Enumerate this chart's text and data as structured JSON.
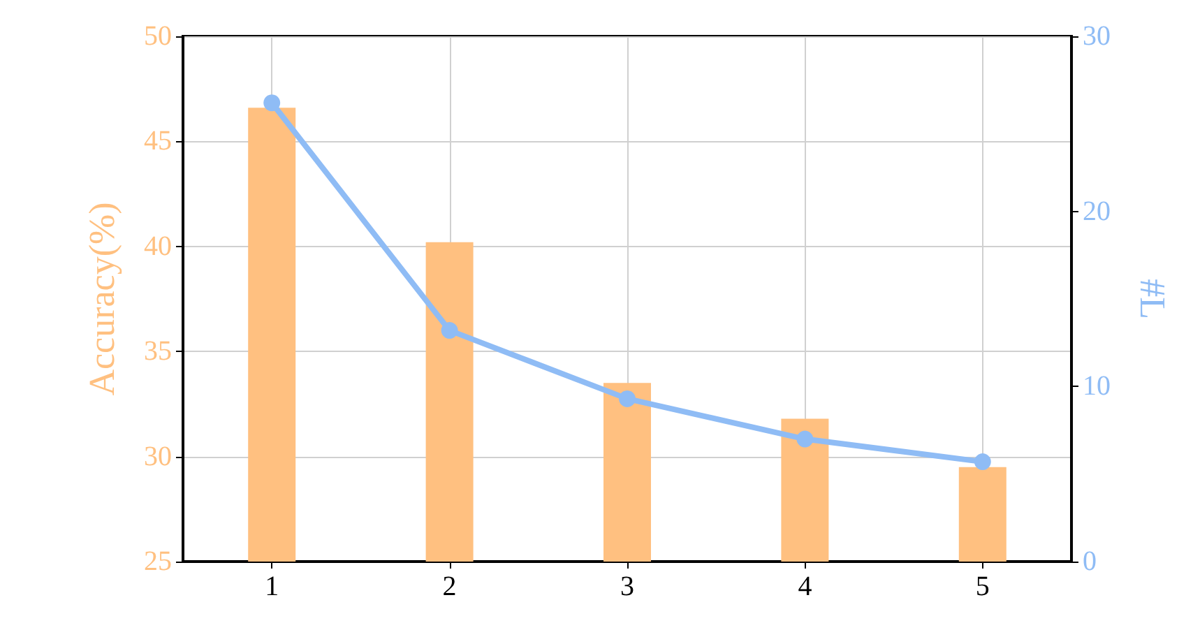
{
  "chart_data": {
    "type": "bar",
    "x": [
      1,
      2,
      3,
      4,
      5
    ],
    "xlim": [
      0.5,
      5.5
    ],
    "xticks": [
      1,
      2,
      3,
      4,
      5
    ],
    "ylabel": "Accuracy(%)",
    "y2label": "#L",
    "ylim": [
      25,
      50
    ],
    "yticks": [
      25,
      30,
      35,
      40,
      45,
      50
    ],
    "y2lim": [
      0,
      30
    ],
    "y2ticks": [
      0,
      10,
      20,
      30
    ],
    "grid": true,
    "series": [
      {
        "color": "#ffc080",
        "values": [
          46.6,
          40.2,
          33.5,
          31.8,
          29.5
        ]
      },
      {
        "type": "line",
        "axis": "y2",
        "color": "#8fbcf5",
        "marker": "circle",
        "values": [
          26.2,
          13.2,
          9.3,
          7.0,
          5.7
        ]
      }
    ]
  }
}
